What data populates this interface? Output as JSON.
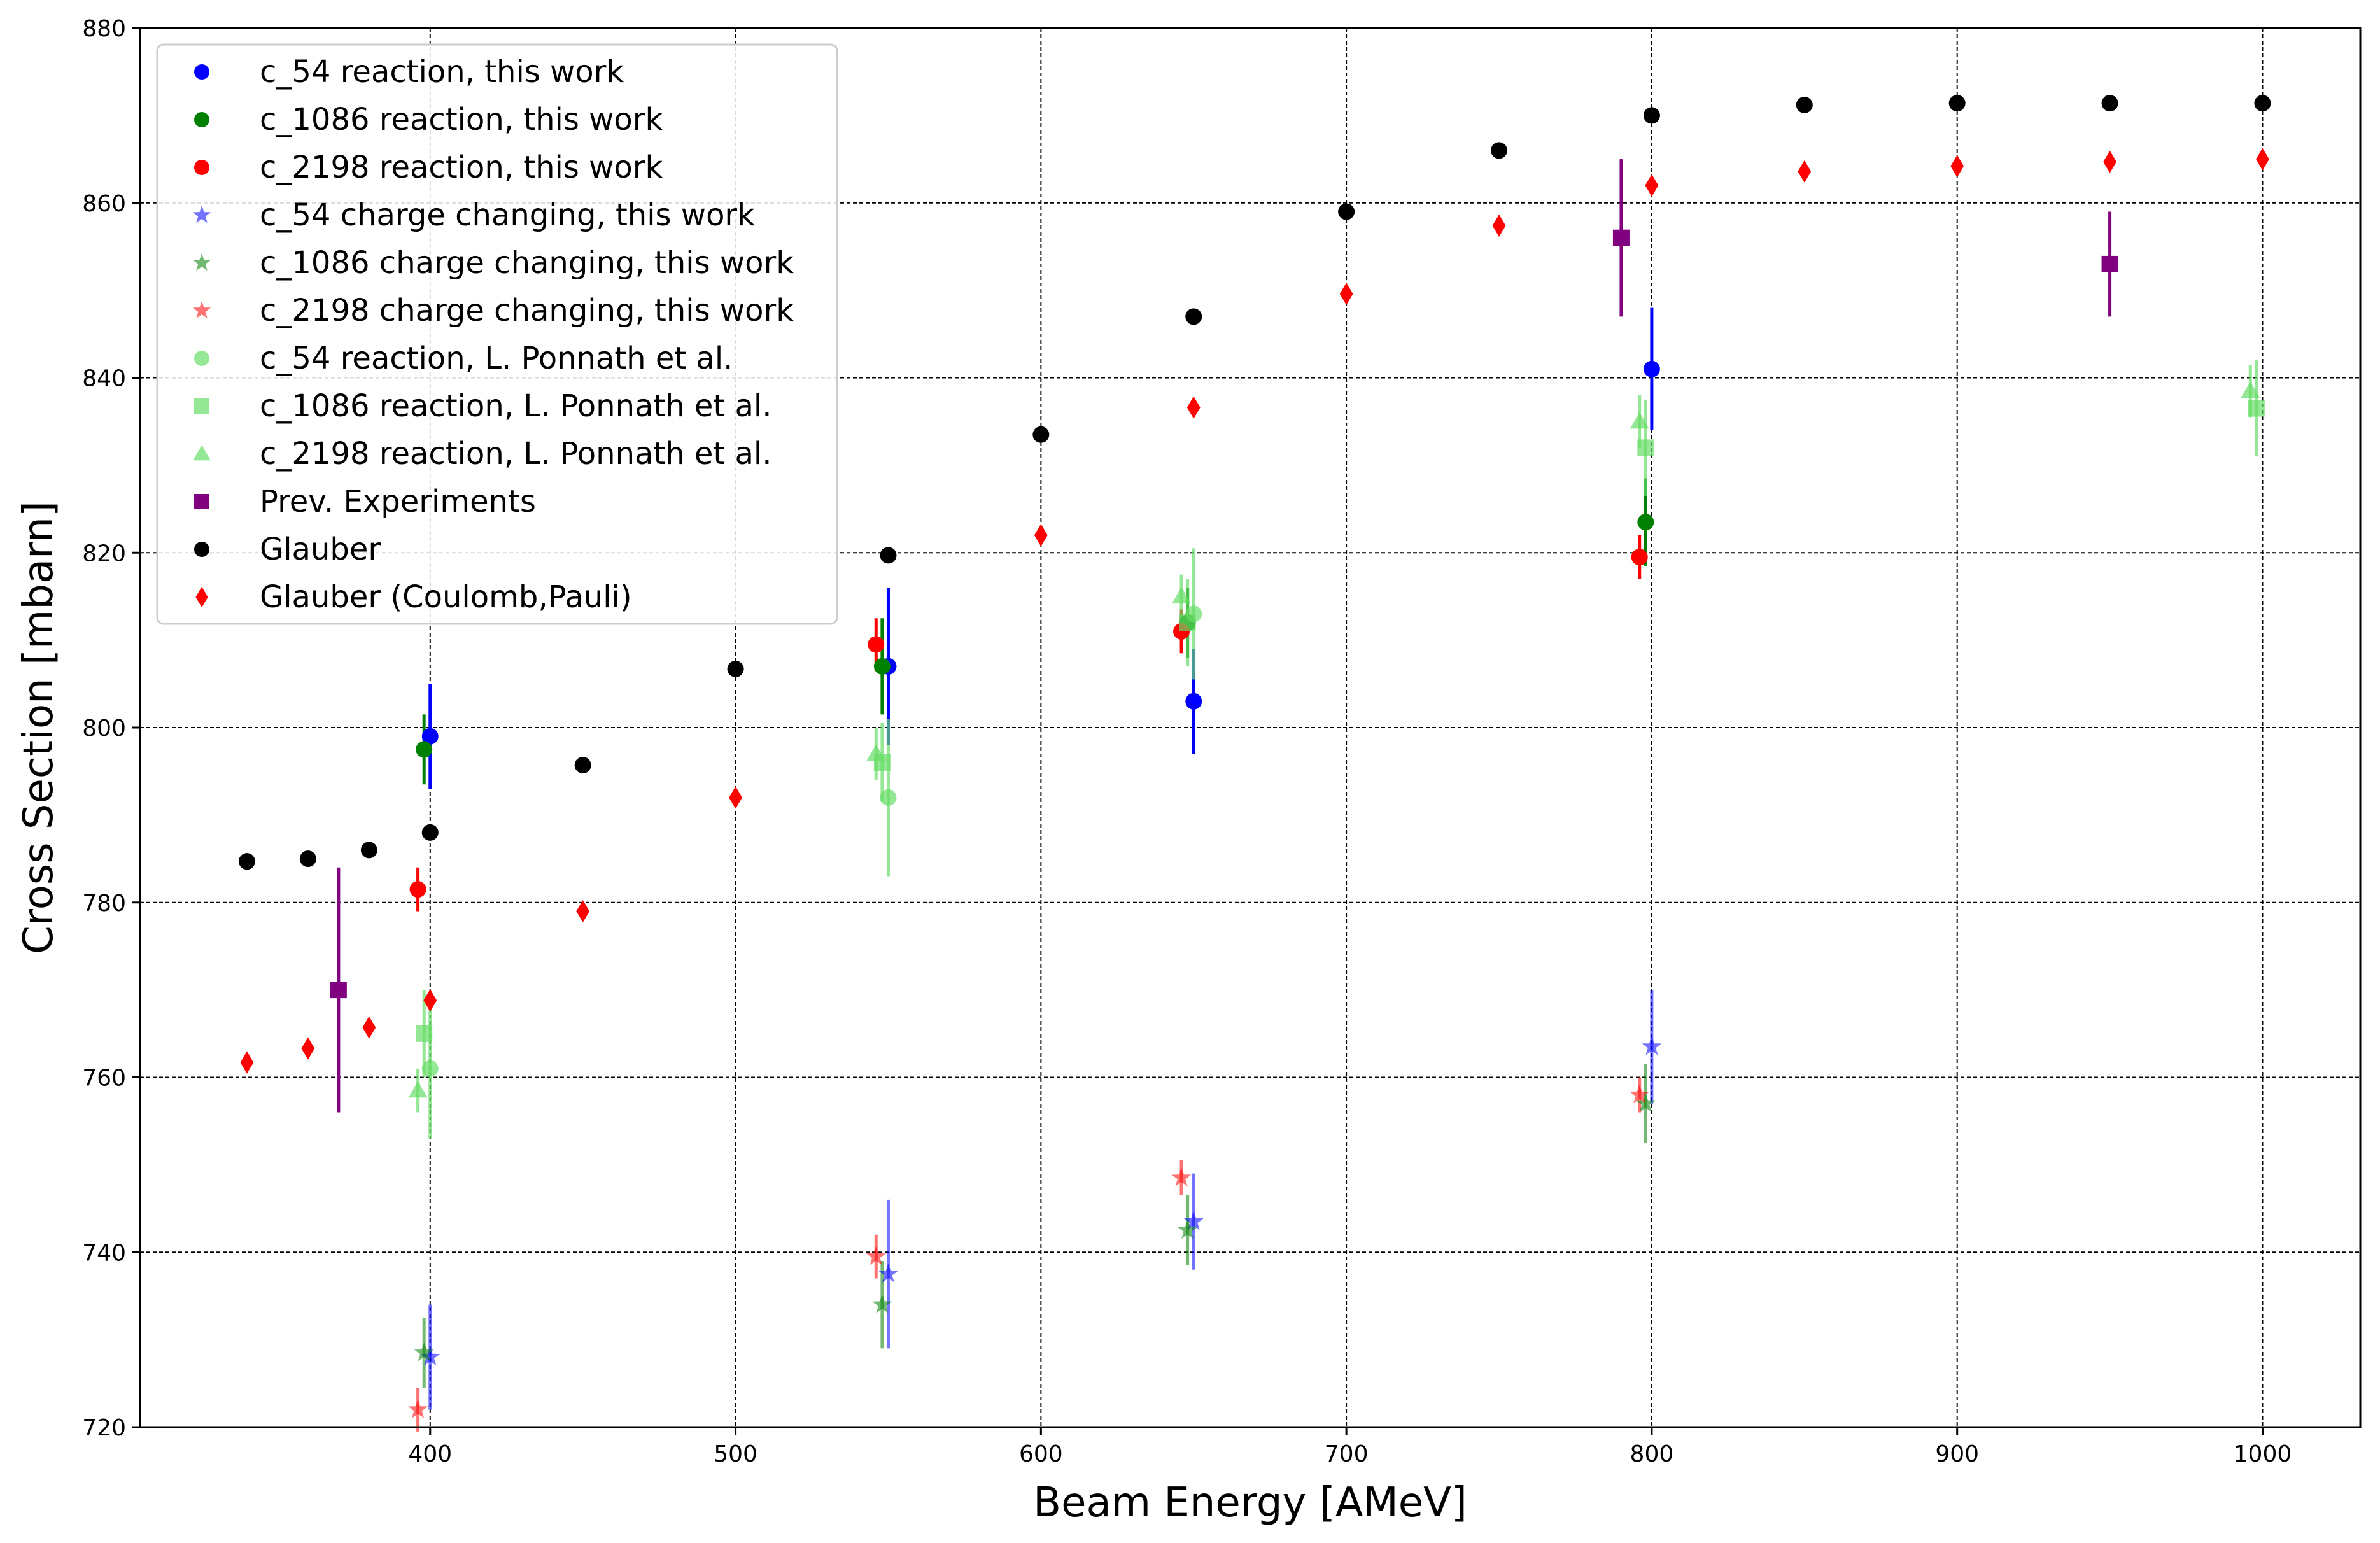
{
  "chart_data": {
    "type": "scatter",
    "xlabel": "Beam Energy [AMeV]",
    "ylabel": "Cross Section [mbarn]",
    "xlim": [
      305,
      1032
    ],
    "ylim": [
      720,
      880
    ],
    "xticks": [
      400,
      500,
      600,
      700,
      800,
      900,
      1000
    ],
    "yticks": [
      720,
      740,
      760,
      780,
      800,
      820,
      840,
      860,
      880
    ],
    "grid": true,
    "legend_position": "top-left",
    "series": [
      {
        "name": "c_54 reaction, this work",
        "marker": "circle",
        "color": "#0000ff",
        "opacity": 1,
        "points": [
          {
            "x": 400,
            "y": 799,
            "err": 6
          },
          {
            "x": 550,
            "y": 807,
            "err": 9
          },
          {
            "x": 650,
            "y": 803,
            "err": 6
          },
          {
            "x": 800,
            "y": 841,
            "err": 7
          }
        ]
      },
      {
        "name": "c_1086 reaction, this work",
        "marker": "circle",
        "color": "#008000",
        "opacity": 1,
        "points": [
          {
            "x": 398,
            "y": 797.5,
            "err": 4
          },
          {
            "x": 548,
            "y": 807,
            "err": 5.5
          },
          {
            "x": 648,
            "y": 812,
            "err": 4
          },
          {
            "x": 798,
            "y": 823.5,
            "err": 5
          }
        ]
      },
      {
        "name": "c_2198 reaction, this work",
        "marker": "circle",
        "color": "#ff0000",
        "opacity": 1,
        "points": [
          {
            "x": 396,
            "y": 781.5,
            "err": 2.5
          },
          {
            "x": 546,
            "y": 809.5,
            "err": 3
          },
          {
            "x": 646,
            "y": 811,
            "err": 2.5
          },
          {
            "x": 796,
            "y": 819.5,
            "err": 2.5
          }
        ]
      },
      {
        "name": "c_54 charge changing, this work",
        "marker": "star",
        "color": "#0000ff",
        "opacity": 0.55,
        "points": [
          {
            "x": 400,
            "y": 728,
            "err": 6
          },
          {
            "x": 550,
            "y": 737.5,
            "err": 8.5
          },
          {
            "x": 650,
            "y": 743.5,
            "err": 5.5
          },
          {
            "x": 800,
            "y": 763.5,
            "err": 6.5
          }
        ]
      },
      {
        "name": "c_1086 charge changing, this work",
        "marker": "star",
        "color": "#008000",
        "opacity": 0.55,
        "points": [
          {
            "x": 398,
            "y": 728.5,
            "err": 4
          },
          {
            "x": 548,
            "y": 734,
            "err": 5
          },
          {
            "x": 648,
            "y": 742.5,
            "err": 4
          },
          {
            "x": 798,
            "y": 757,
            "err": 4.5
          }
        ]
      },
      {
        "name": "c_2198 charge changing, this work",
        "marker": "star",
        "color": "#ff0000",
        "opacity": 0.55,
        "points": [
          {
            "x": 396,
            "y": 722,
            "err": 2.5
          },
          {
            "x": 546,
            "y": 739.5,
            "err": 2.5
          },
          {
            "x": 646,
            "y": 748.5,
            "err": 2
          },
          {
            "x": 796,
            "y": 758,
            "err": 2
          }
        ]
      },
      {
        "name": "c_54 reaction, L. Ponnath et al.",
        "marker": "circle",
        "color": "#66dd66",
        "opacity": 0.7,
        "points": [
          {
            "x": 400,
            "y": 761,
            "err": 8
          },
          {
            "x": 550,
            "y": 792,
            "err": 9
          },
          {
            "x": 650,
            "y": 813,
            "err": 7.5
          }
        ]
      },
      {
        "name": "c_1086 reaction, L. Ponnath et al.",
        "marker": "square",
        "color": "#66dd66",
        "opacity": 0.7,
        "points": [
          {
            "x": 398,
            "y": 765,
            "err": 5
          },
          {
            "x": 548,
            "y": 796,
            "err": 4.5
          },
          {
            "x": 648,
            "y": 812,
            "err": 5
          },
          {
            "x": 798,
            "y": 832,
            "err": 5.5
          },
          {
            "x": 998,
            "y": 836.5,
            "err": 5.5
          }
        ]
      },
      {
        "name": "c_2198 reaction, L. Ponnath et al.",
        "marker": "triangle",
        "color": "#66dd66",
        "opacity": 0.7,
        "points": [
          {
            "x": 396,
            "y": 758.5,
            "err": 2.5
          },
          {
            "x": 546,
            "y": 797,
            "err": 3
          },
          {
            "x": 646,
            "y": 815,
            "err": 2.5
          },
          {
            "x": 796,
            "y": 835,
            "err": 3
          },
          {
            "x": 996,
            "y": 838.5,
            "err": 3
          }
        ]
      },
      {
        "name": "Prev. Experiments",
        "marker": "square",
        "color": "#800080",
        "opacity": 1,
        "points": [
          {
            "x": 370,
            "y": 770,
            "err": 14
          },
          {
            "x": 790,
            "y": 856,
            "err": 9
          },
          {
            "x": 950,
            "y": 853,
            "err": 6
          }
        ]
      },
      {
        "name": "Glauber",
        "marker": "circle",
        "color": "#000000",
        "opacity": 1,
        "points": [
          {
            "x": 340,
            "y": 784.7
          },
          {
            "x": 360,
            "y": 785
          },
          {
            "x": 380,
            "y": 786
          },
          {
            "x": 400,
            "y": 788
          },
          {
            "x": 450,
            "y": 795.7
          },
          {
            "x": 500,
            "y": 806.7
          },
          {
            "x": 550,
            "y": 819.7
          },
          {
            "x": 600,
            "y": 833.5
          },
          {
            "x": 650,
            "y": 847
          },
          {
            "x": 700,
            "y": 859
          },
          {
            "x": 750,
            "y": 866
          },
          {
            "x": 800,
            "y": 870
          },
          {
            "x": 850,
            "y": 871.2
          },
          {
            "x": 900,
            "y": 871.4
          },
          {
            "x": 950,
            "y": 871.4
          },
          {
            "x": 1000,
            "y": 871.4
          }
        ]
      },
      {
        "name": "Glauber (Coulomb,Pauli)",
        "marker": "diamond",
        "color": "#ff0000",
        "opacity": 1,
        "points": [
          {
            "x": 340,
            "y": 761.7
          },
          {
            "x": 360,
            "y": 763.3
          },
          {
            "x": 380,
            "y": 765.7
          },
          {
            "x": 400,
            "y": 768.8
          },
          {
            "x": 450,
            "y": 779
          },
          {
            "x": 500,
            "y": 792
          },
          {
            "x": 600,
            "y": 822
          },
          {
            "x": 650,
            "y": 836.6
          },
          {
            "x": 700,
            "y": 849.6
          },
          {
            "x": 750,
            "y": 857.4
          },
          {
            "x": 800,
            "y": 862
          },
          {
            "x": 850,
            "y": 863.6
          },
          {
            "x": 900,
            "y": 864.2
          },
          {
            "x": 950,
            "y": 864.7
          },
          {
            "x": 1000,
            "y": 865
          }
        ]
      }
    ]
  }
}
